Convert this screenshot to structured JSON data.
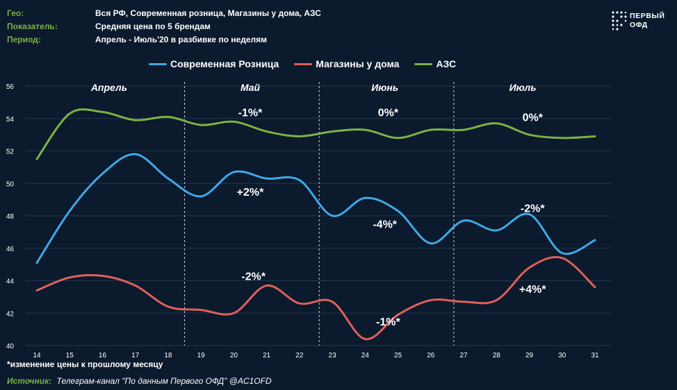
{
  "header": {
    "geo_label": "Гео:",
    "geo_value": "Вся РФ, Современная розница, Магазины у дома, АЗС",
    "metric_label": "Показатель:",
    "metric_value": "Средняя цена по 5 брендам",
    "period_label": "Период:",
    "period_value": "Апрель - Июль'20 в разбивке по неделям"
  },
  "logo": {
    "line1": "ПЕРВЫЙ",
    "line2": "ОФД"
  },
  "footnote": "*изменение цены  к прошлому месяцу",
  "source": {
    "label": "Источник:",
    "text": "Телеграм-канал \"По данным Первого ОФД\" @AC1OFD"
  },
  "colors": {
    "background": "#0b1a2d",
    "grid": "#24364d",
    "accent_green": "#7cb342"
  },
  "chart_data": {
    "type": "line",
    "x": [
      14,
      15,
      16,
      17,
      18,
      19,
      20,
      21,
      22,
      23,
      24,
      25,
      26,
      27,
      28,
      29,
      30,
      31
    ],
    "ylim": [
      40,
      56
    ],
    "yticks": [
      40,
      42,
      44,
      46,
      48,
      50,
      52,
      54,
      56
    ],
    "grid": true,
    "legend_position": "top",
    "series": [
      {
        "name": "Современная Розница",
        "color": "#3fa9e6",
        "values": [
          45.1,
          48.3,
          50.6,
          51.8,
          50.3,
          49.2,
          50.7,
          50.3,
          50.2,
          48.0,
          49.1,
          48.3,
          46.3,
          47.7,
          47.1,
          48.1,
          45.7,
          46.5
        ]
      },
      {
        "name": "Магазины у дома",
        "color": "#e0605a",
        "values": [
          43.4,
          44.2,
          44.3,
          43.7,
          42.4,
          42.2,
          42.0,
          43.7,
          42.6,
          42.7,
          40.4,
          41.9,
          42.8,
          42.7,
          42.8,
          44.8,
          45.4,
          43.6
        ]
      },
      {
        "name": "АЗС",
        "color": "#7cb342",
        "values": [
          51.5,
          54.3,
          54.4,
          53.9,
          54.1,
          53.6,
          53.8,
          53.2,
          52.9,
          53.2,
          53.3,
          52.8,
          53.3,
          53.3,
          53.7,
          53.0,
          52.8,
          52.9
        ]
      }
    ],
    "months": [
      {
        "label": "Апрель",
        "x": 16.2
      },
      {
        "label": "Май",
        "x": 20.5
      },
      {
        "label": "Июнь",
        "x": 24.6
      },
      {
        "label": "Июль",
        "x": 28.8
      }
    ],
    "month_dividers": [
      18.5,
      22.6,
      26.7
    ],
    "annotations": [
      {
        "text": "-1%*",
        "x": 20.5,
        "y": 54.4
      },
      {
        "text": "0%*",
        "x": 24.7,
        "y": 54.4
      },
      {
        "text": "0%*",
        "x": 29.1,
        "y": 54.1
      },
      {
        "text": "+2%*",
        "x": 20.5,
        "y": 49.5
      },
      {
        "text": "-4%*",
        "x": 24.6,
        "y": 47.5
      },
      {
        "text": "-2%*",
        "x": 29.1,
        "y": 48.5
      },
      {
        "text": "-2%*",
        "x": 20.6,
        "y": 44.3
      },
      {
        "text": "-1%*",
        "x": 24.7,
        "y": 41.5
      },
      {
        "text": "+4%*",
        "x": 29.1,
        "y": 43.5
      }
    ]
  }
}
